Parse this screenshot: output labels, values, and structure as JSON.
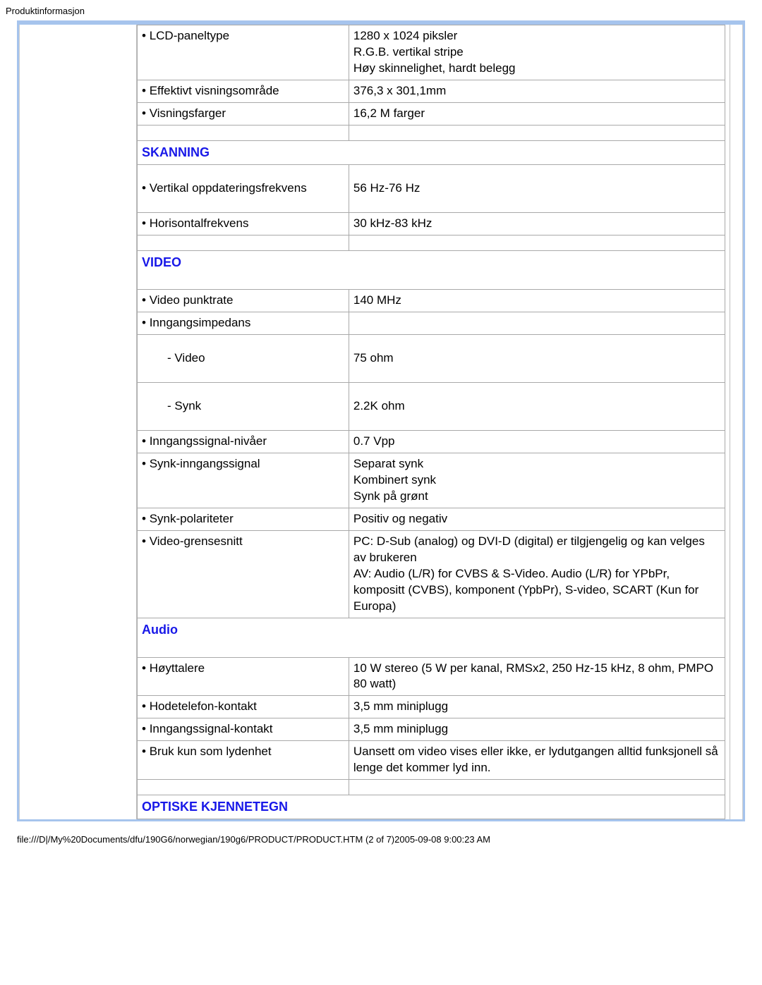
{
  "page": {
    "header": "Produktinformasjon",
    "footer": "file:///D|/My%20Documents/dfu/190G6/norwegian/190g6/PRODUCT/PRODUCT.HTM (2 of 7)2005-09-08 9:00:23 AM"
  },
  "colors": {
    "frame": "#a6c4ed",
    "cell_border": "#a9a9a9",
    "section_header": "#1818e8",
    "text": "#000000",
    "background": "#ffffff"
  },
  "typography": {
    "body_fontsize_pt": 13,
    "header_fontsize_pt": 14
  },
  "spec_table": {
    "rows": [
      {
        "type": "kv",
        "label": " LCD-paneltype",
        "value": "1280 x 1024 piksler\nR.G.B. vertikal stripe\nHøy skinnelighet, hardt belegg",
        "bullet": true
      },
      {
        "type": "kv",
        "label": "Effektivt visningsområde",
        "value": "376,3 x 301,1mm",
        "bullet": true
      },
      {
        "type": "kv",
        "label": "Visningsfarger",
        "value": "16,2 M farger",
        "bullet": true
      },
      {
        "type": "empty"
      },
      {
        "type": "section",
        "title": "SKANNING"
      },
      {
        "type": "kv",
        "label": "Vertikal oppdateringsfrekvens",
        "value": "56 Hz-76 Hz",
        "bullet": true,
        "tall": true
      },
      {
        "type": "kv",
        "label": "Horisontalfrekvens",
        "value": "30 kHz-83 kHz",
        "bullet": true
      },
      {
        "type": "empty"
      },
      {
        "type": "section",
        "title": "VIDEO",
        "pad_bottom": true
      },
      {
        "type": "kv",
        "label": "Video punktrate",
        "value": "140 MHz",
        "bullet": true
      },
      {
        "type": "kv",
        "label": "Inngangsimpedans",
        "value": "",
        "bullet": true
      },
      {
        "type": "kv",
        "label": "- Video",
        "value": "75 ohm",
        "indent": true,
        "tall": true
      },
      {
        "type": "kv",
        "label": "- Synk",
        "value": "2.2K ohm",
        "indent": true,
        "tall": true
      },
      {
        "type": "kv",
        "label": "Inngangssignal-nivåer",
        "value": "0.7 Vpp",
        "bullet": true
      },
      {
        "type": "kv",
        "label": "Synk-inngangssignal",
        "value": "Separat synk\nKombinert synk\nSynk på grønt",
        "bullet": true
      },
      {
        "type": "kv",
        "label": "Synk-polariteter",
        "value": "Positiv og negativ",
        "bullet": true
      },
      {
        "type": "kv",
        "label": "Video-grensesnitt",
        "value": "PC: D-Sub (analog) og DVI-D (digital) er tilgjengelig og kan velges av brukeren\nAV: Audio (L/R) for CVBS & S-Video. Audio (L/R) for YPbPr, kompositt (CVBS), komponent (YpbPr), S-video, SCART (Kun for Europa)",
        "bullet": true
      },
      {
        "type": "section",
        "title": "Audio",
        "cap": true,
        "pad_bottom": true
      },
      {
        "type": "kv",
        "label": "Høyttalere",
        "value": "10 W stereo (5 W per kanal, RMSx2, 250 Hz-15 kHz, 8 ohm, PMPO 80 watt)",
        "bullet": true
      },
      {
        "type": "kv",
        "label": "Hodetelefon-kontakt",
        "value": "3,5 mm miniplugg",
        "bullet": true
      },
      {
        "type": "kv",
        "label": "Inngangssignal-kontakt",
        "value": "3,5 mm miniplugg",
        "bullet": true
      },
      {
        "type": "kv",
        "label": "Bruk kun som lydenhet",
        "value": "Uansett om video vises eller ikke, er lydutgangen alltid funksjonell så lenge det kommer lyd inn.",
        "bullet": true
      },
      {
        "type": "empty"
      },
      {
        "type": "section",
        "title": "OPTISKE KJENNETEGN"
      }
    ]
  }
}
